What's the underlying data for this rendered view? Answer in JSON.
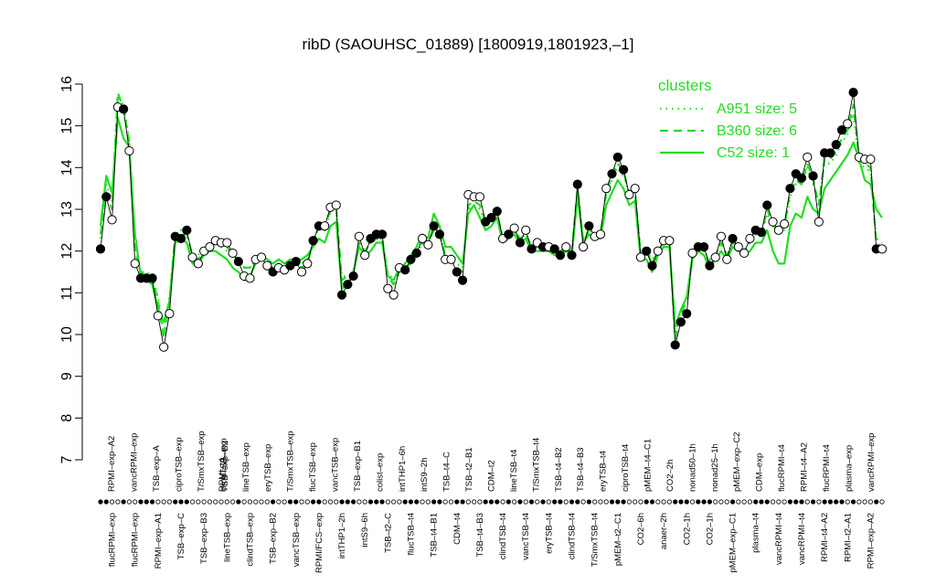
{
  "chart_data": {
    "type": "line",
    "title": "ribD (SAOUHSC_01889) [1800919,1801923,–1]",
    "xlabel": "",
    "ylabel": "",
    "ylim": [
      7,
      16
    ],
    "yticks": [
      7,
      8,
      9,
      10,
      11,
      12,
      13,
      14,
      15,
      16
    ],
    "grid": false,
    "legend": {
      "title": "clusters",
      "placement": "top-right",
      "entries": [
        {
          "label": "A951 size: 5",
          "style": "dotted"
        },
        {
          "label": "B360 size: 6",
          "style": "dashed"
        },
        {
          "label": "C52 size: 1",
          "style": "solid"
        }
      ]
    },
    "series_color": "#22dd22",
    "x_labels_top": [
      "RPMI–exp–A2",
      "vancRPMI–exp",
      "TSB–exp–A",
      "ciproTSB–exp",
      "T/SmxTSB–exp",
      "clindTSB–exp",
      "lineTSB–exp",
      "eryTSB–exp",
      "T/SmxTSB–exp",
      "flucTSB–exp",
      "vancTSB–exp",
      "TSB–exp–B1",
      "colist–exp",
      "intTHP1–6h",
      "intS9–2h",
      "TSB–t4–C",
      "TSB–t2–B1",
      "CDM–t2",
      "lineTSB–t4",
      "T/SmxTSB–t4",
      "TSB–t4–B2",
      "TSB–t4–B3",
      "eryTSB–t4",
      "ciproTSB–t4",
      "pMEM–t4–C1",
      "CO2–2h",
      "nonad50–1h",
      "nonad25–1h",
      "pMEM–exp–C2",
      "CDM–exp",
      "flucRPMI–t4",
      "RPMI–t4–A2",
      "flucRPMI–t4",
      "plasma–exp",
      "vancRPMI–exp"
    ],
    "x_labels_bottom": [
      "flucRPMI–exp",
      "flucRPMI–exp",
      "RPMI–exp–A1",
      "TSB–exp–C",
      "TSB–exp–B3",
      "lineTSB–exp",
      "clindTSB–exp",
      "TSB–exp–B2",
      "vancTSB–exp",
      "RPMI/FCS–exp",
      "intTHP1–2h",
      "intS9–6h",
      "TSB–t2–C",
      "flucTSB–t4",
      "TSB–t4–B1",
      "CDM–t4",
      "TSB–t4–B3",
      "clindTSB–t4",
      "vancTSB–t4",
      "eryTSB–t4",
      "clindTSB–t4",
      "T/SmxTSB–t4",
      "pMEM–t2–C1",
      "CO2–6h",
      "anaer–2h",
      "CO2–1h",
      "CO2–1h",
      "pMEM–exp–C1",
      "plasma–t4",
      "vancRPMI–t4",
      "vancRPMI–t4",
      "RPMI–t4–A2",
      "RPMI–t2–A1",
      "RPMI–exp–A2"
    ],
    "x_labels_top_overlap": [
      "RPMI–t4",
      "TSB–exp–B2"
    ],
    "observed": [
      {
        "v": 12.05,
        "f": 1
      },
      {
        "v": 13.3,
        "f": 1
      },
      {
        "v": 12.75,
        "f": 0
      },
      {
        "v": 15.45,
        "f": 0
      },
      {
        "v": 15.4,
        "f": 1
      },
      {
        "v": 14.4,
        "f": 0
      },
      {
        "v": 11.7,
        "f": 0
      },
      {
        "v": 11.35,
        "f": 1
      },
      {
        "v": 11.35,
        "f": 1
      },
      {
        "v": 11.35,
        "f": 1
      },
      {
        "v": 10.45,
        "f": 0
      },
      {
        "v": 9.7,
        "f": 0
      },
      {
        "v": 10.5,
        "f": 0
      },
      {
        "v": 12.35,
        "f": 1
      },
      {
        "v": 12.3,
        "f": 1
      },
      {
        "v": 12.5,
        "f": 1
      },
      {
        "v": 11.85,
        "f": 0
      },
      {
        "v": 11.7,
        "f": 0
      },
      {
        "v": 12.0,
        "f": 0
      },
      {
        "v": 12.1,
        "f": 0
      },
      {
        "v": 12.25,
        "f": 0
      },
      {
        "v": 12.2,
        "f": 0
      },
      {
        "v": 12.2,
        "f": 0
      },
      {
        "v": 11.95,
        "f": 0
      },
      {
        "v": 11.75,
        "f": 1
      },
      {
        "v": 11.4,
        "f": 0
      },
      {
        "v": 11.35,
        "f": 0
      },
      {
        "v": 11.8,
        "f": 0
      },
      {
        "v": 11.85,
        "f": 0
      },
      {
        "v": 11.65,
        "f": 0
      },
      {
        "v": 11.5,
        "f": 1
      },
      {
        "v": 11.6,
        "f": 0
      },
      {
        "v": 11.55,
        "f": 0
      },
      {
        "v": 11.65,
        "f": 1
      },
      {
        "v": 11.75,
        "f": 1
      },
      {
        "v": 11.5,
        "f": 0
      },
      {
        "v": 11.7,
        "f": 0
      },
      {
        "v": 12.25,
        "f": 1
      },
      {
        "v": 12.6,
        "f": 1
      },
      {
        "v": 12.6,
        "f": 0
      },
      {
        "v": 13.05,
        "f": 0
      },
      {
        "v": 13.1,
        "f": 0
      },
      {
        "v": 10.95,
        "f": 1
      },
      {
        "v": 11.2,
        "f": 1
      },
      {
        "v": 11.4,
        "f": 1
      },
      {
        "v": 12.35,
        "f": 0
      },
      {
        "v": 11.9,
        "f": 0
      },
      {
        "v": 12.3,
        "f": 1
      },
      {
        "v": 12.4,
        "f": 1
      },
      {
        "v": 12.4,
        "f": 1
      },
      {
        "v": 11.1,
        "f": 0
      },
      {
        "v": 10.95,
        "f": 0
      },
      {
        "v": 11.6,
        "f": 0
      },
      {
        "v": 11.55,
        "f": 1
      },
      {
        "v": 11.8,
        "f": 1
      },
      {
        "v": 11.95,
        "f": 1
      },
      {
        "v": 12.3,
        "f": 0
      },
      {
        "v": 12.15,
        "f": 0
      },
      {
        "v": 12.6,
        "f": 1
      },
      {
        "v": 12.4,
        "f": 1
      },
      {
        "v": 11.8,
        "f": 0
      },
      {
        "v": 11.8,
        "f": 0
      },
      {
        "v": 11.5,
        "f": 1
      },
      {
        "v": 11.3,
        "f": 1
      },
      {
        "v": 13.35,
        "f": 0
      },
      {
        "v": 13.3,
        "f": 0
      },
      {
        "v": 13.3,
        "f": 0
      },
      {
        "v": 12.7,
        "f": 1
      },
      {
        "v": 12.8,
        "f": 1
      },
      {
        "v": 12.95,
        "f": 1
      },
      {
        "v": 12.3,
        "f": 0
      },
      {
        "v": 12.4,
        "f": 1
      },
      {
        "v": 12.55,
        "f": 0
      },
      {
        "v": 12.2,
        "f": 1
      },
      {
        "v": 12.5,
        "f": 0
      },
      {
        "v": 12.05,
        "f": 1
      },
      {
        "v": 12.2,
        "f": 0
      },
      {
        "v": 12.1,
        "f": 1
      },
      {
        "v": 12.1,
        "f": 0
      },
      {
        "v": 12.05,
        "f": 1
      },
      {
        "v": 11.9,
        "f": 1
      },
      {
        "v": 12.1,
        "f": 0
      },
      {
        "v": 11.9,
        "f": 1
      },
      {
        "v": 13.6,
        "f": 1
      },
      {
        "v": 12.1,
        "f": 0
      },
      {
        "v": 12.6,
        "f": 1
      },
      {
        "v": 12.35,
        "f": 0
      },
      {
        "v": 12.4,
        "f": 0
      },
      {
        "v": 13.5,
        "f": 0
      },
      {
        "v": 13.85,
        "f": 1
      },
      {
        "v": 14.25,
        "f": 1
      },
      {
        "v": 13.95,
        "f": 1
      },
      {
        "v": 13.35,
        "f": 0
      },
      {
        "v": 13.5,
        "f": 0
      },
      {
        "v": 11.85,
        "f": 0
      },
      {
        "v": 12.0,
        "f": 1
      },
      {
        "v": 11.65,
        "f": 1
      },
      {
        "v": 12.0,
        "f": 0
      },
      {
        "v": 12.25,
        "f": 0
      },
      {
        "v": 12.25,
        "f": 0
      },
      {
        "v": 9.75,
        "f": 1
      },
      {
        "v": 10.3,
        "f": 1
      },
      {
        "v": 10.5,
        "f": 1
      },
      {
        "v": 11.95,
        "f": 0
      },
      {
        "v": 12.1,
        "f": 1
      },
      {
        "v": 12.1,
        "f": 1
      },
      {
        "v": 11.65,
        "f": 1
      },
      {
        "v": 11.85,
        "f": 0
      },
      {
        "v": 12.35,
        "f": 0
      },
      {
        "v": 11.8,
        "f": 0
      },
      {
        "v": 12.3,
        "f": 1
      },
      {
        "v": 12.1,
        "f": 0
      },
      {
        "v": 11.95,
        "f": 0
      },
      {
        "v": 12.3,
        "f": 0
      },
      {
        "v": 12.5,
        "f": 1
      },
      {
        "v": 12.45,
        "f": 1
      },
      {
        "v": 13.1,
        "f": 1
      },
      {
        "v": 12.7,
        "f": 0
      },
      {
        "v": 12.5,
        "f": 0
      },
      {
        "v": 12.65,
        "f": 0
      },
      {
        "v": 13.5,
        "f": 1
      },
      {
        "v": 13.85,
        "f": 1
      },
      {
        "v": 13.75,
        "f": 1
      },
      {
        "v": 14.25,
        "f": 0
      },
      {
        "v": 13.8,
        "f": 1
      },
      {
        "v": 12.7,
        "f": 0
      },
      {
        "v": 14.35,
        "f": 1
      },
      {
        "v": 14.35,
        "f": 1
      },
      {
        "v": 14.55,
        "f": 1
      },
      {
        "v": 14.9,
        "f": 1
      },
      {
        "v": 15.05,
        "f": 0
      },
      {
        "v": 15.8,
        "f": 1
      },
      {
        "v": 14.25,
        "f": 0
      },
      {
        "v": 14.2,
        "f": 0
      },
      {
        "v": 14.2,
        "f": 0
      },
      {
        "v": 12.05,
        "f": 1
      },
      {
        "v": 12.05,
        "f": 0
      }
    ],
    "series": [
      {
        "style": "dotted",
        "values": [
          12.3,
          13.6,
          13.2,
          15.7,
          15.5,
          14.7,
          12.2,
          11.5,
          11.5,
          11.4,
          10.9,
          10.0,
          10.9,
          12.4,
          12.5,
          12.4,
          11.9,
          11.9,
          12.1,
          12.1,
          12.2,
          12.1,
          12.0,
          11.9,
          11.8,
          11.6,
          11.6,
          11.8,
          11.8,
          11.7,
          11.6,
          11.7,
          11.6,
          11.7,
          11.7,
          11.7,
          11.8,
          12.2,
          12.6,
          12.5,
          12.9,
          12.9,
          11.4,
          11.4,
          11.5,
          12.2,
          12.0,
          12.2,
          12.3,
          12.3,
          11.5,
          11.3,
          11.5,
          11.6,
          11.7,
          11.9,
          12.2,
          12.2,
          12.5,
          12.4,
          11.9,
          11.9,
          11.7,
          11.6,
          13.0,
          13.1,
          13.0,
          12.7,
          12.8,
          12.9,
          12.3,
          12.4,
          12.5,
          12.3,
          12.4,
          12.1,
          12.1,
          12.1,
          12.1,
          12.0,
          12.0,
          12.1,
          12.0,
          13.4,
          12.3,
          12.5,
          12.4,
          12.4,
          13.3,
          13.7,
          14.0,
          13.8,
          13.4,
          13.4,
          12.0,
          12.0,
          11.8,
          12.0,
          12.2,
          12.2,
          10.0,
          10.6,
          10.9,
          11.9,
          12.1,
          12.0,
          11.8,
          11.9,
          12.2,
          11.9,
          12.2,
          12.1,
          12.0,
          12.2,
          12.4,
          12.4,
          12.9,
          12.6,
          12.5,
          12.5,
          13.3,
          13.6,
          13.6,
          14.0,
          13.6,
          13.2,
          14.1,
          14.1,
          14.3,
          14.6,
          14.8,
          15.3,
          14.1,
          14.0,
          13.9,
          12.3,
          12.2
        ]
      },
      {
        "style": "dashed",
        "values": [
          12.4,
          13.4,
          13.0,
          15.8,
          15.4,
          14.6,
          12.0,
          11.5,
          11.4,
          11.4,
          10.8,
          9.9,
          10.8,
          12.4,
          12.4,
          12.4,
          11.9,
          11.8,
          12.0,
          12.1,
          12.2,
          12.1,
          12.1,
          11.9,
          11.8,
          11.6,
          11.6,
          11.8,
          11.8,
          11.7,
          11.6,
          11.7,
          11.6,
          11.7,
          11.7,
          11.6,
          11.7,
          12.2,
          12.6,
          12.5,
          13.0,
          13.0,
          11.3,
          11.4,
          11.5,
          12.2,
          12.0,
          12.2,
          12.3,
          12.3,
          11.4,
          11.2,
          11.5,
          11.6,
          11.7,
          11.9,
          12.2,
          12.2,
          12.5,
          12.4,
          11.9,
          11.8,
          11.6,
          11.5,
          13.1,
          13.2,
          13.1,
          12.7,
          12.8,
          12.9,
          12.3,
          12.4,
          12.5,
          12.3,
          12.4,
          12.1,
          12.1,
          12.1,
          12.1,
          12.0,
          12.0,
          12.1,
          12.0,
          13.5,
          12.2,
          12.5,
          12.4,
          12.4,
          13.4,
          13.8,
          14.1,
          13.9,
          13.4,
          13.4,
          11.9,
          12.0,
          11.7,
          12.0,
          12.2,
          12.2,
          9.9,
          10.5,
          10.8,
          11.9,
          12.1,
          12.0,
          11.7,
          11.9,
          12.2,
          11.9,
          12.2,
          12.1,
          12.0,
          12.2,
          12.4,
          12.4,
          13.0,
          12.6,
          12.5,
          12.6,
          13.4,
          13.7,
          13.6,
          14.1,
          13.7,
          13.1,
          14.2,
          14.2,
          14.4,
          14.7,
          14.9,
          15.5,
          14.2,
          14.1,
          14.0,
          12.2,
          12.1
        ]
      },
      {
        "style": "solid",
        "values": [
          12.6,
          13.8,
          13.4,
          15.2,
          14.7,
          14.5,
          12.4,
          11.4,
          11.3,
          11.2,
          10.6,
          10.3,
          10.8,
          12.2,
          12.3,
          12.2,
          11.7,
          11.7,
          11.9,
          12.0,
          12.0,
          11.9,
          11.8,
          11.6,
          11.5,
          11.3,
          11.4,
          11.7,
          11.9,
          11.8,
          11.7,
          11.8,
          11.7,
          11.8,
          11.8,
          11.8,
          11.9,
          12.1,
          12.3,
          12.2,
          12.6,
          12.7,
          11.1,
          11.2,
          11.5,
          12.1,
          11.9,
          12.0,
          12.2,
          12.2,
          11.4,
          11.3,
          11.6,
          11.7,
          11.9,
          12.1,
          12.4,
          12.3,
          12.9,
          12.6,
          12.1,
          12.1,
          11.9,
          11.7,
          12.9,
          13.1,
          12.8,
          12.5,
          12.6,
          12.8,
          12.2,
          12.3,
          12.4,
          12.2,
          12.3,
          12.0,
          12.0,
          12.0,
          12.0,
          11.9,
          11.9,
          12.0,
          11.9,
          13.3,
          12.2,
          12.4,
          12.3,
          12.3,
          13.1,
          13.4,
          13.7,
          13.5,
          13.1,
          13.2,
          11.8,
          11.8,
          11.5,
          11.9,
          12.1,
          12.1,
          10.2,
          10.6,
          10.9,
          11.8,
          12.0,
          11.9,
          11.6,
          11.8,
          12.0,
          11.8,
          12.1,
          12.0,
          11.9,
          12.0,
          12.2,
          12.2,
          12.5,
          12.0,
          11.7,
          11.7,
          12.6,
          12.9,
          12.8,
          13.3,
          13.0,
          12.9,
          13.5,
          13.7,
          13.9,
          14.1,
          14.3,
          14.6,
          14.2,
          13.7,
          13.6,
          13.0,
          12.8
        ]
      }
    ]
  }
}
